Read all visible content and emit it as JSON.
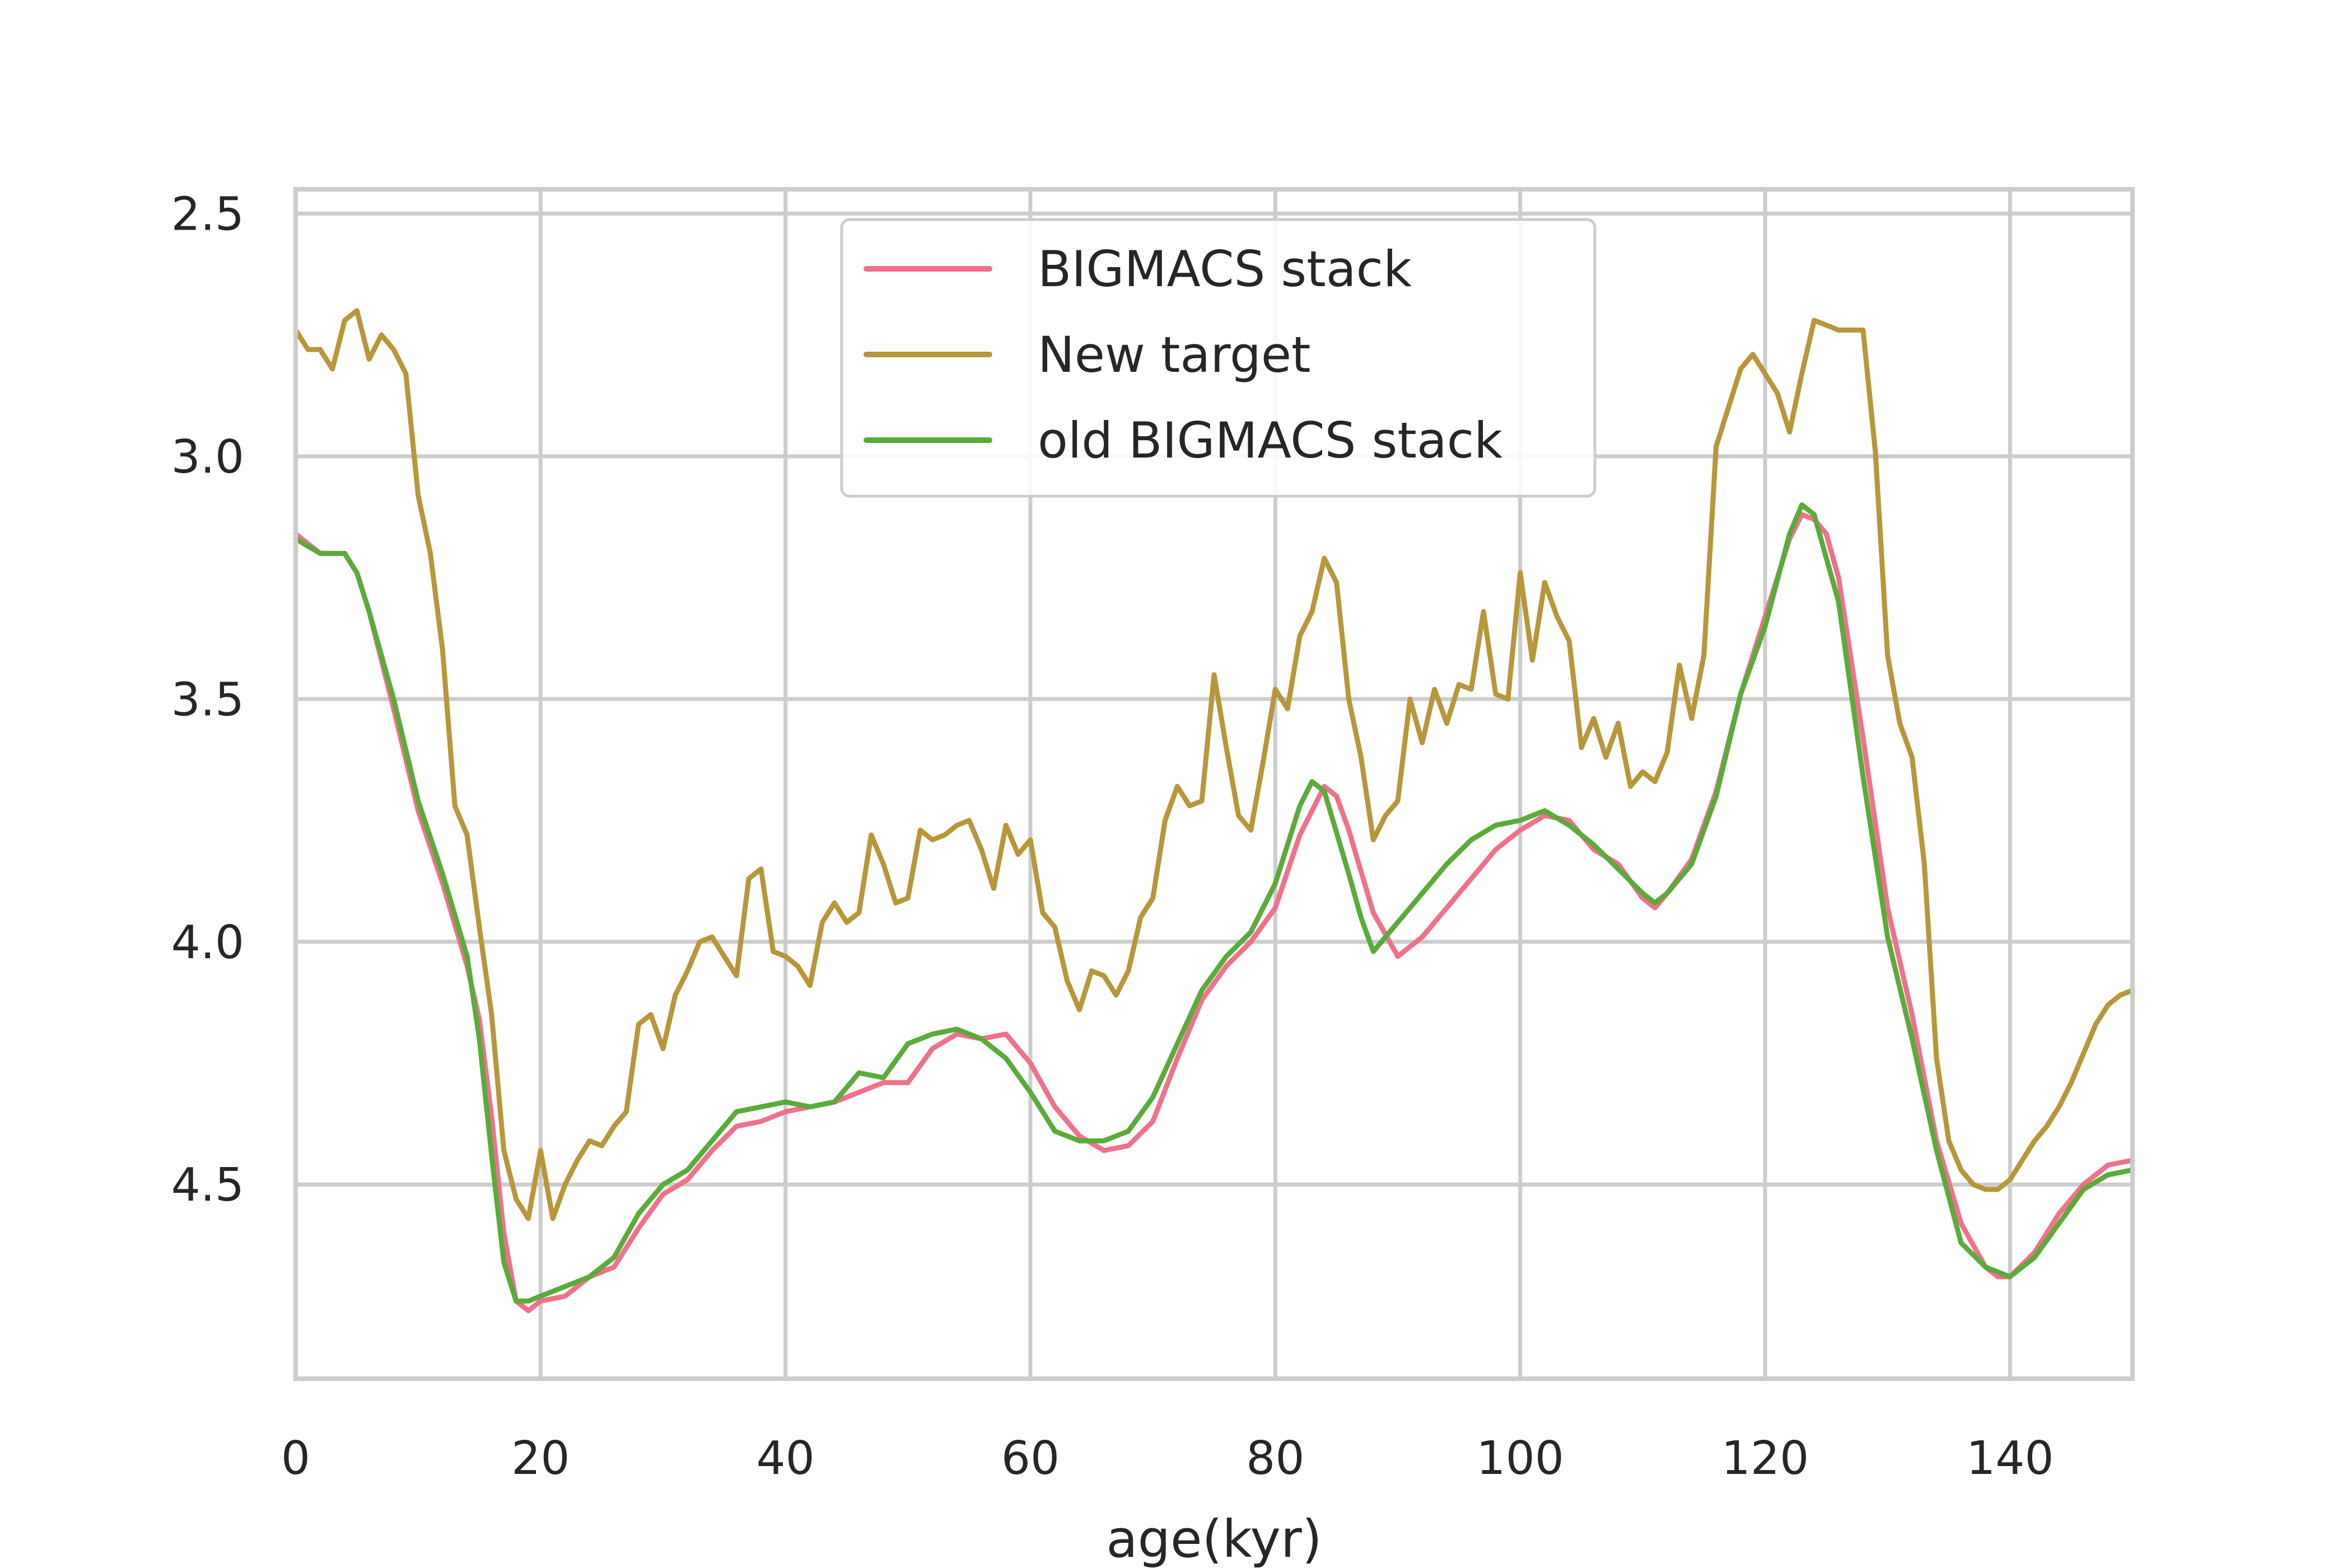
{
  "chart_data": {
    "type": "line",
    "title": "",
    "xlabel": "age(kyr)",
    "ylabel": "",
    "xlim": [
      0,
      150
    ],
    "ylim": [
      4.9,
      2.45
    ],
    "y_inverted": true,
    "grid": true,
    "legend_position": "upper center",
    "x_ticks": [
      0,
      20,
      40,
      60,
      80,
      100,
      120,
      140
    ],
    "x_tick_labels": [
      "0",
      "20",
      "40",
      "60",
      "80",
      "100",
      "120",
      "140"
    ],
    "y_ticks": [
      2.5,
      3.0,
      3.5,
      4.0,
      4.5
    ],
    "y_tick_labels": [
      "2.5",
      "3.0",
      "3.5",
      "4.0",
      "4.5"
    ],
    "series": [
      {
        "name": "BIGMACS stack",
        "color": "#f0718a",
        "x": [
          0,
          2,
          4,
          5,
          6,
          8,
          10,
          12,
          14,
          15,
          16,
          17,
          18,
          19,
          20,
          22,
          24,
          26,
          28,
          30,
          32,
          34,
          36,
          38,
          40,
          42,
          44,
          46,
          48,
          50,
          52,
          54,
          56,
          58,
          60,
          62,
          64,
          66,
          68,
          70,
          72,
          74,
          76,
          78,
          80,
          82,
          84,
          85,
          86,
          88,
          90,
          92,
          94,
          96,
          98,
          100,
          102,
          104,
          106,
          108,
          110,
          111,
          112,
          114,
          116,
          118,
          120,
          122,
          123,
          124,
          125,
          126,
          128,
          130,
          132,
          134,
          136,
          138,
          139,
          140,
          142,
          144,
          146,
          148,
          150
        ],
        "y": [
          3.16,
          3.2,
          3.2,
          3.24,
          3.32,
          3.52,
          3.73,
          3.88,
          4.05,
          4.16,
          4.36,
          4.6,
          4.74,
          4.76,
          4.74,
          4.73,
          4.69,
          4.67,
          4.59,
          4.52,
          4.49,
          4.43,
          4.38,
          4.37,
          4.35,
          4.34,
          4.33,
          4.31,
          4.29,
          4.29,
          4.22,
          4.19,
          4.2,
          4.19,
          4.25,
          4.34,
          4.4,
          4.43,
          4.42,
          4.37,
          4.24,
          4.12,
          4.05,
          4.0,
          3.93,
          3.78,
          3.68,
          3.7,
          3.77,
          3.94,
          4.03,
          3.99,
          3.93,
          3.87,
          3.81,
          3.77,
          3.74,
          3.75,
          3.81,
          3.84,
          3.91,
          3.93,
          3.9,
          3.83,
          3.69,
          3.49,
          3.33,
          3.17,
          3.12,
          3.13,
          3.16,
          3.25,
          3.58,
          3.93,
          4.15,
          4.41,
          4.58,
          4.67,
          4.69,
          4.69,
          4.64,
          4.56,
          4.5,
          4.46,
          4.45
        ]
      },
      {
        "name": "New target",
        "color": "#b8963a",
        "x": [
          0,
          1,
          2,
          3,
          4,
          5,
          6,
          7,
          8,
          9,
          10,
          11,
          12,
          13,
          14,
          15,
          16,
          17,
          18,
          19,
          20,
          21,
          22,
          23,
          24,
          25,
          26,
          27,
          28,
          29,
          30,
          31,
          32,
          33,
          34,
          35,
          36,
          37,
          38,
          39,
          40,
          41,
          42,
          43,
          44,
          45,
          46,
          47,
          48,
          49,
          50,
          51,
          52,
          53,
          54,
          55,
          56,
          57,
          58,
          59,
          60,
          61,
          62,
          63,
          64,
          65,
          66,
          67,
          68,
          69,
          70,
          71,
          72,
          73,
          74,
          75,
          76,
          77,
          78,
          79,
          80,
          81,
          82,
          83,
          84,
          85,
          86,
          87,
          88,
          89,
          90,
          91,
          92,
          93,
          94,
          95,
          96,
          97,
          98,
          99,
          100,
          101,
          102,
          103,
          104,
          105,
          106,
          107,
          108,
          109,
          110,
          111,
          112,
          113,
          114,
          115,
          116,
          117,
          118,
          119,
          120,
          121,
          122,
          123,
          124,
          125,
          126,
          127,
          128,
          129,
          130,
          131,
          132,
          133,
          134,
          135,
          136,
          137,
          138,
          139,
          140,
          141,
          142,
          143,
          144,
          145,
          146,
          147,
          148,
          149,
          150
        ],
        "y": [
          2.74,
          2.78,
          2.78,
          2.82,
          2.72,
          2.7,
          2.8,
          2.75,
          2.78,
          2.83,
          3.08,
          3.2,
          3.4,
          3.72,
          3.78,
          3.97,
          4.15,
          4.43,
          4.53,
          4.57,
          4.43,
          4.57,
          4.5,
          4.45,
          4.41,
          4.42,
          4.38,
          4.35,
          4.17,
          4.15,
          4.22,
          4.11,
          4.06,
          4.0,
          3.99,
          4.03,
          4.07,
          3.87,
          3.85,
          4.02,
          4.03,
          4.05,
          4.09,
          3.96,
          3.92,
          3.96,
          3.94,
          3.78,
          3.84,
          3.92,
          3.91,
          3.77,
          3.79,
          3.78,
          3.76,
          3.75,
          3.81,
          3.89,
          3.76,
          3.82,
          3.79,
          3.94,
          3.97,
          4.08,
          4.14,
          4.06,
          4.07,
          4.11,
          4.06,
          3.95,
          3.91,
          3.75,
          3.68,
          3.72,
          3.71,
          3.45,
          3.6,
          3.74,
          3.77,
          3.63,
          3.48,
          3.52,
          3.37,
          3.32,
          3.21,
          3.26,
          3.5,
          3.62,
          3.79,
          3.74,
          3.71,
          3.5,
          3.59,
          3.48,
          3.55,
          3.47,
          3.48,
          3.32,
          3.49,
          3.5,
          3.24,
          3.42,
          3.26,
          3.33,
          3.38,
          3.6,
          3.54,
          3.62,
          3.55,
          3.68,
          3.65,
          3.67,
          3.61,
          3.43,
          3.54,
          3.41,
          2.98,
          2.9,
          2.82,
          2.79,
          2.83,
          2.87,
          2.95,
          2.83,
          2.72,
          2.73,
          2.74,
          2.74,
          2.74,
          2.99,
          3.41,
          3.55,
          3.62,
          3.84,
          4.24,
          4.41,
          4.47,
          4.5,
          4.51,
          4.51,
          4.49,
          4.45,
          4.41,
          4.38,
          4.34,
          4.29,
          4.23,
          4.17,
          4.13,
          4.11,
          4.1
        ]
      },
      {
        "name": "old BIGMACS stack",
        "color": "#5aab3a",
        "x": [
          0,
          2,
          4,
          5,
          6,
          8,
          10,
          12,
          14,
          15,
          16,
          17,
          18,
          19,
          20,
          22,
          24,
          26,
          28,
          30,
          32,
          34,
          36,
          38,
          40,
          42,
          44,
          46,
          48,
          50,
          52,
          54,
          56,
          58,
          60,
          62,
          64,
          66,
          68,
          70,
          72,
          74,
          76,
          78,
          80,
          82,
          83,
          84,
          86,
          87,
          88,
          90,
          92,
          94,
          96,
          98,
          100,
          102,
          104,
          106,
          108,
          110,
          111,
          112,
          114,
          116,
          118,
          120,
          122,
          123,
          124,
          126,
          128,
          130,
          132,
          134,
          136,
          138,
          140,
          141,
          142,
          144,
          146,
          148,
          150
        ],
        "y": [
          3.17,
          3.2,
          3.2,
          3.24,
          3.32,
          3.5,
          3.71,
          3.86,
          4.03,
          4.2,
          4.44,
          4.66,
          4.74,
          4.74,
          4.73,
          4.71,
          4.69,
          4.65,
          4.56,
          4.5,
          4.47,
          4.41,
          4.35,
          4.34,
          4.33,
          4.34,
          4.33,
          4.27,
          4.28,
          4.21,
          4.19,
          4.18,
          4.2,
          4.24,
          4.31,
          4.39,
          4.41,
          4.41,
          4.39,
          4.32,
          4.21,
          4.1,
          4.03,
          3.98,
          3.88,
          3.72,
          3.67,
          3.69,
          3.86,
          3.95,
          4.02,
          3.96,
          3.9,
          3.84,
          3.79,
          3.76,
          3.75,
          3.73,
          3.76,
          3.8,
          3.85,
          3.9,
          3.92,
          3.9,
          3.84,
          3.7,
          3.49,
          3.35,
          3.16,
          3.1,
          3.12,
          3.3,
          3.66,
          3.99,
          4.2,
          4.43,
          4.62,
          4.67,
          4.69,
          4.67,
          4.65,
          4.58,
          4.51,
          4.48,
          4.47
        ]
      }
    ]
  }
}
